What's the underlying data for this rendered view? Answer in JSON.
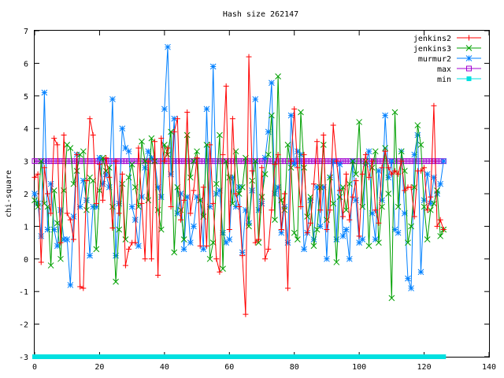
{
  "chart_data": {
    "type": "line",
    "title": "Hash size 262147",
    "xlabel": "",
    "ylabel": "chi-square",
    "xlim": [
      0,
      140
    ],
    "ylim": [
      -3,
      7
    ],
    "xticks": [
      0,
      20,
      40,
      60,
      80,
      100,
      120,
      140
    ],
    "yticks": [
      -3,
      -2,
      -1,
      0,
      1,
      2,
      3,
      4,
      5,
      6,
      7
    ],
    "grid": false,
    "legend_position": "top-right",
    "series": [
      {
        "name": "jenkins2",
        "color": "#ff0000",
        "marker": "plus",
        "values": [
          2.5,
          2.6,
          -0.1,
          2.8,
          2.0,
          1.4,
          3.7,
          3.5,
          0.5,
          3.8,
          1.4,
          1.2,
          0.6,
          3.2,
          -0.85,
          -0.9,
          2.4,
          4.3,
          3.8,
          1.7,
          2.9,
          1.8,
          3.1,
          2.5,
          0.95,
          3.0,
          1.4,
          2.6,
          -0.2,
          0.3,
          0.5,
          0.5,
          3.4,
          1.7,
          0.0,
          3.0,
          0.0,
          3.6,
          -0.5,
          3.7,
          3.0,
          3.4,
          1.6,
          3.9,
          4.3,
          1.2,
          1.8,
          4.5,
          1.4,
          2.1,
          3.1,
          0.4,
          2.2,
          0.4,
          3.5,
          1.7,
          0.0,
          -0.4,
          3.2,
          5.3,
          0.9,
          4.3,
          2.0,
          1.6,
          0.1,
          -1.7,
          6.2,
          2.7,
          0.5,
          0.6,
          2.8,
          0.0,
          0.3,
          1.5,
          2.9,
          3.2,
          0.9,
          2.0,
          -0.9,
          3.0,
          4.6,
          2.8,
          1.6,
          3.2,
          0.8,
          1.1,
          2.3,
          3.6,
          1.5,
          3.8,
          0.9,
          1.5,
          4.1,
          3.0,
          2.1,
          1.3,
          2.6,
          1.2,
          1.9,
          2.4,
          0.7,
          2.6,
          3.2,
          2.5,
          3.0,
          1.5,
          1.1,
          2.8,
          3.3,
          2.8,
          2.6,
          2.7,
          2.6,
          3.0,
          2.1,
          2.2,
          2.2,
          1.3,
          2.7,
          2.7,
          2.8,
          1.5,
          1.9,
          4.7,
          1.0,
          1.2,
          0.9
        ]
      },
      {
        "name": "jenkins3",
        "color": "#00a000",
        "marker": "cross",
        "values": [
          1.8,
          1.6,
          3.0,
          1.7,
          1.6,
          -0.2,
          2.1,
          1.1,
          0.0,
          2.1,
          3.5,
          3.4,
          2.3,
          2.7,
          3.2,
          3.3,
          1.5,
          2.5,
          2.4,
          0.3,
          2.1,
          3.1,
          2.7,
          2.8,
          1.6,
          -0.7,
          0.9,
          2.3,
          0.6,
          2.5,
          2.9,
          2.2,
          1.6,
          3.6,
          3.0,
          1.8,
          3.7,
          3.0,
          1.5,
          0.9,
          3.5,
          3.2,
          3.9,
          0.2,
          2.2,
          1.5,
          0.6,
          3.8,
          2.5,
          3.0,
          3.3,
          1.8,
          1.3,
          3.5,
          0.0,
          0.5,
          2.3,
          3.8,
          -0.3,
          3.0,
          2.5,
          1.7,
          3.3,
          2.0,
          2.2,
          3.1,
          1.0,
          2.4,
          3.0,
          0.5,
          1.9,
          2.6,
          3.2,
          4.4,
          1.2,
          5.6,
          1.8,
          1.5,
          3.5,
          2.8,
          0.8,
          0.6,
          4.5,
          2.8,
          1.3,
          1.9,
          0.4,
          0.9,
          2.2,
          3.5,
          1.2,
          2.5,
          1.7,
          -0.1,
          1.9,
          2.2,
          1.5,
          2.3,
          3.0,
          2.6,
          4.2,
          1.6,
          3.0,
          0.4,
          2.8,
          3.3,
          0.5,
          1.6,
          3.4,
          2.0,
          -1.2,
          4.5,
          1.6,
          3.3,
          2.7,
          0.5,
          1.0,
          2.2,
          4.1,
          3.5,
          1.6,
          0.6,
          1.5,
          1.7,
          2.1,
          0.7,
          0.9
        ]
      },
      {
        "name": "murmur2",
        "color": "#0080ff",
        "marker": "star",
        "values": [
          2.0,
          1.7,
          0.7,
          5.1,
          0.9,
          2.3,
          0.9,
          0.4,
          1.5,
          0.6,
          0.6,
          -0.8,
          1.3,
          3.2,
          1.6,
          2.4,
          1.8,
          0.1,
          1.6,
          1.6,
          3.1,
          2.3,
          2.6,
          2.2,
          4.9,
          0.1,
          1.7,
          4.0,
          3.4,
          3.3,
          1.6,
          1.2,
          0.4,
          1.9,
          2.8,
          3.3,
          3.1,
          3.0,
          2.2,
          1.9,
          4.6,
          6.5,
          2.6,
          4.3,
          1.4,
          2.0,
          0.3,
          1.9,
          0.5,
          1.0,
          1.9,
          1.8,
          0.3,
          4.6,
          1.6,
          5.9,
          2.0,
          2.1,
          0.8,
          0.5,
          0.6,
          2.5,
          1.6,
          2.2,
          0.2,
          1.5,
          1.1,
          2.1,
          4.9,
          1.5,
          1.7,
          3.1,
          3.9,
          5.4,
          2.0,
          2.2,
          0.8,
          1.6,
          0.5,
          4.4,
          2.9,
          3.3,
          3.2,
          0.3,
          0.8,
          1.8,
          0.6,
          2.2,
          1.0,
          2.2,
          0.0,
          2.5,
          3.0,
          0.6,
          2.9,
          0.7,
          0.9,
          0.0,
          3.0,
          1.8,
          0.5,
          0.6,
          2.9,
          3.3,
          1.4,
          0.6,
          2.7,
          1.8,
          4.4,
          2.5,
          3.0,
          0.9,
          0.8,
          3.3,
          1.4,
          -0.6,
          -0.9,
          3.2,
          3.8,
          -0.4,
          1.8,
          2.6,
          1.7,
          2.5,
          2.0,
          2.3,
          3.0
        ]
      },
      {
        "name": "max",
        "color": "#a000d0",
        "marker": "square",
        "values": [
          3.0,
          3.0,
          3.0,
          3.0,
          3.0,
          3.0,
          3.0,
          3.0,
          3.0,
          3.0,
          3.0,
          3.0,
          3.0,
          3.0,
          3.0,
          3.0,
          3.0,
          3.0,
          3.0,
          3.0,
          3.0,
          3.0,
          3.0,
          3.0,
          3.0,
          3.0,
          3.0,
          3.0,
          3.0,
          3.0,
          3.0,
          3.0,
          3.0,
          3.0,
          3.0,
          3.0,
          3.0,
          3.0,
          3.0,
          3.0,
          3.0,
          3.0,
          3.0,
          3.0,
          3.0,
          3.0,
          3.0,
          3.0,
          3.0,
          3.0,
          3.0,
          3.0,
          3.0,
          3.0,
          3.0,
          3.0,
          3.0,
          3.0,
          3.0,
          3.0,
          3.0,
          3.0,
          3.0,
          3.0,
          3.0,
          3.0,
          3.0,
          3.0,
          3.0,
          3.0,
          3.0,
          3.0,
          3.0,
          3.0,
          3.0,
          3.0,
          3.0,
          3.0,
          3.0,
          3.0,
          3.0,
          3.0,
          3.0,
          3.0,
          3.0,
          3.0,
          3.0,
          3.0,
          3.0,
          3.0,
          3.0,
          3.0,
          3.0,
          3.0,
          3.0,
          3.0,
          3.0,
          3.0,
          3.0,
          3.0,
          3.0,
          3.0,
          3.0,
          3.0,
          3.0,
          3.0,
          3.0,
          3.0,
          3.0,
          3.0,
          3.0,
          3.0,
          3.0,
          3.0,
          3.0,
          3.0,
          3.0,
          3.0,
          3.0,
          3.0,
          3.0,
          3.0,
          3.0,
          3.0,
          3.0,
          3.0,
          3.0
        ]
      },
      {
        "name": "min",
        "color": "#00e0e0",
        "marker": "filled-square",
        "values": [
          -3.0,
          -3.0,
          -3.0,
          -3.0,
          -3.0,
          -3.0,
          -3.0,
          -3.0,
          -3.0,
          -3.0,
          -3.0,
          -3.0,
          -3.0,
          -3.0,
          -3.0,
          -3.0,
          -3.0,
          -3.0,
          -3.0,
          -3.0,
          -3.0,
          -3.0,
          -3.0,
          -3.0,
          -3.0,
          -3.0,
          -3.0,
          -3.0,
          -3.0,
          -3.0,
          -3.0,
          -3.0,
          -3.0,
          -3.0,
          -3.0,
          -3.0,
          -3.0,
          -3.0,
          -3.0,
          -3.0,
          -3.0,
          -3.0,
          -3.0,
          -3.0,
          -3.0,
          -3.0,
          -3.0,
          -3.0,
          -3.0,
          -3.0,
          -3.0,
          -3.0,
          -3.0,
          -3.0,
          -3.0,
          -3.0,
          -3.0,
          -3.0,
          -3.0,
          -3.0,
          -3.0,
          -3.0,
          -3.0,
          -3.0,
          -3.0,
          -3.0,
          -3.0,
          -3.0,
          -3.0,
          -3.0,
          -3.0,
          -3.0,
          -3.0,
          -3.0,
          -3.0,
          -3.0,
          -3.0,
          -3.0,
          -3.0,
          -3.0,
          -3.0,
          -3.0,
          -3.0,
          -3.0,
          -3.0,
          -3.0,
          -3.0,
          -3.0,
          -3.0,
          -3.0,
          -3.0,
          -3.0,
          -3.0,
          -3.0,
          -3.0,
          -3.0,
          -3.0,
          -3.0,
          -3.0,
          -3.0,
          -3.0,
          -3.0,
          -3.0,
          -3.0,
          -3.0,
          -3.0,
          -3.0,
          -3.0,
          -3.0,
          -3.0,
          -3.0,
          -3.0,
          -3.0,
          -3.0,
          -3.0,
          -3.0,
          -3.0,
          -3.0,
          -3.0,
          -3.0,
          -3.0,
          -3.0,
          -3.0,
          -3.0,
          -3.0,
          -3.0,
          -3.0
        ]
      }
    ]
  }
}
